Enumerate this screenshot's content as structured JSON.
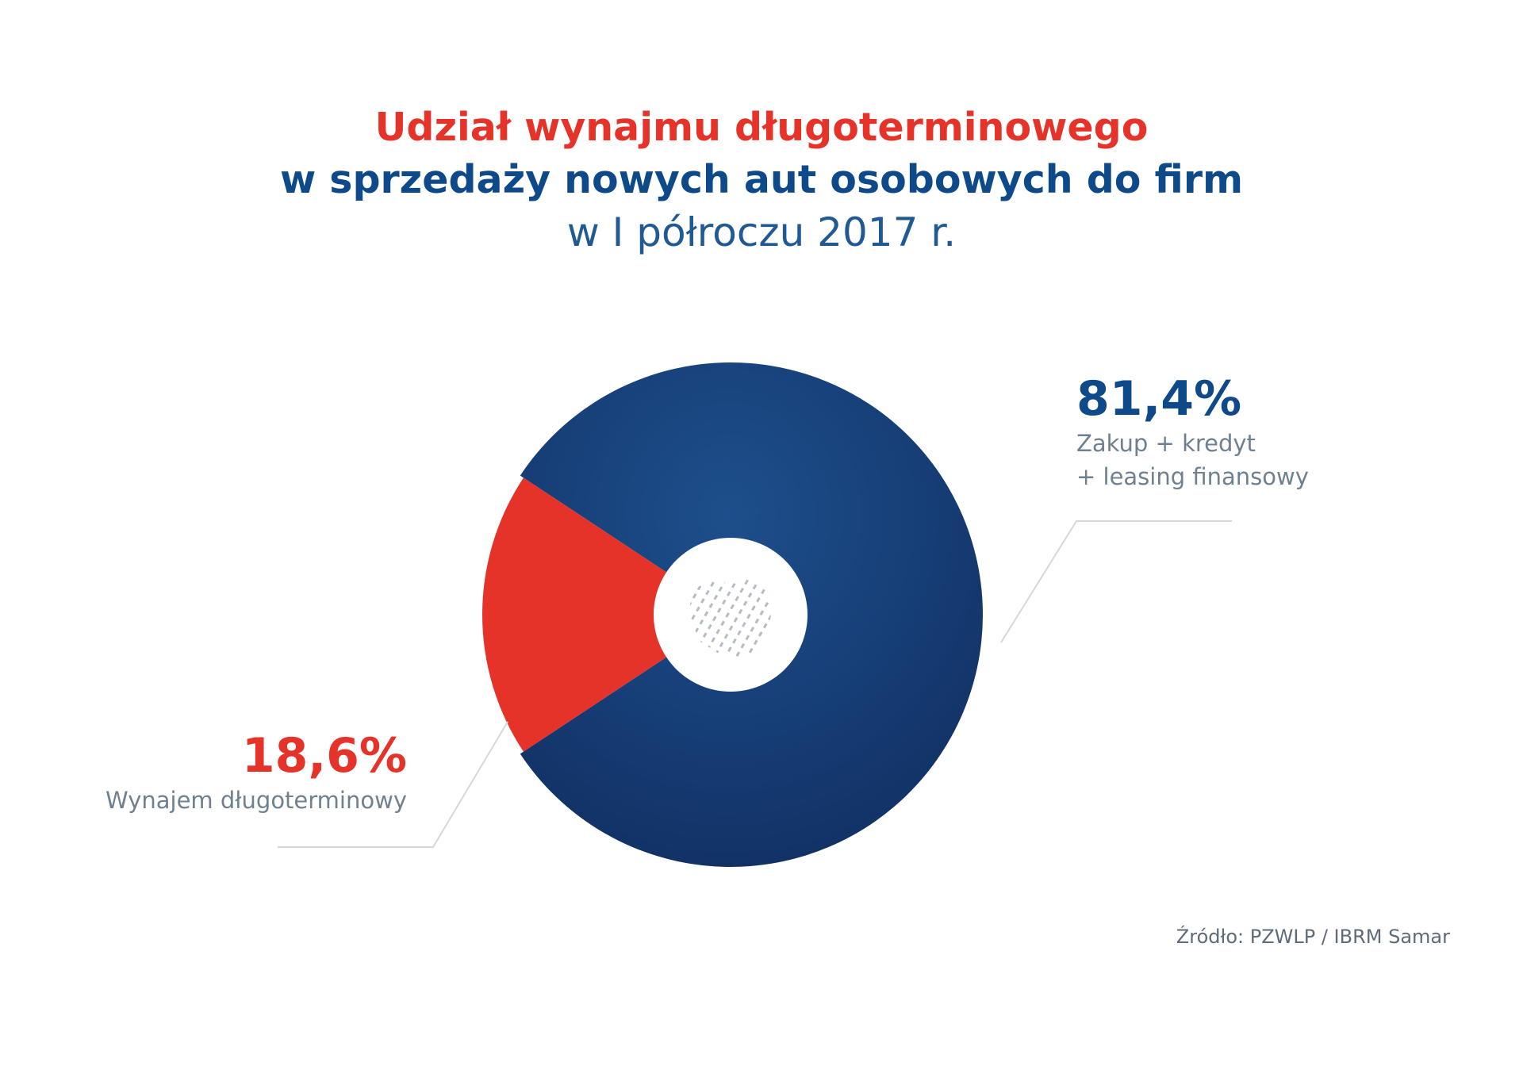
{
  "title": {
    "line1": "Udział wynajmu długoterminowego",
    "line2": "w sprzedaży nowych aut osobowych do firm",
    "line3": "w I półroczu 2017 r."
  },
  "chart_data": {
    "type": "pie",
    "title": "Udział wynajmu długoterminowego w sprzedaży nowych aut osobowych do firm w I półroczu 2017 r.",
    "unit": "%",
    "series": [
      {
        "name": "Zakup + kredyt + leasing finansowy",
        "value": 81.4,
        "label": "81,4%",
        "label_lines": [
          "Zakup + kredyt",
          "+ leasing finansowy"
        ],
        "color": "#163d76"
      },
      {
        "name": "Wynajem długoterminowy",
        "value": 18.6,
        "label": "18,6%",
        "label_lines": [
          "Wynajem długoterminowy"
        ],
        "color": "#e63329"
      }
    ],
    "style": "donut"
  },
  "source": "Źródło: PZWLP / IBRM Samar",
  "colors": {
    "accent_red": "#e63329",
    "brand_blue": "#0e4a8a",
    "leader_line": "#d5d8db"
  },
  "icons": {
    "center": "poland-map-icon"
  }
}
